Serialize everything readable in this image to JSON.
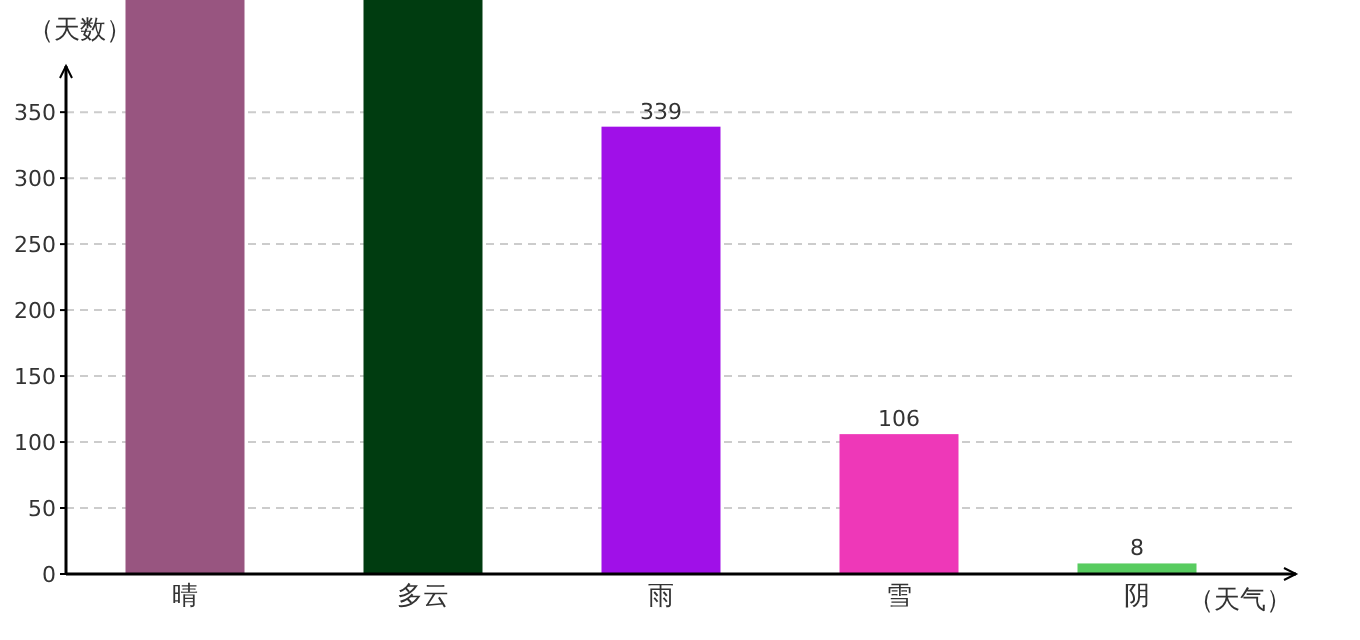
{
  "chart_data": {
    "type": "bar",
    "ylabel": "（天数）",
    "xlabel": "（天气）",
    "categories": [
      "晴",
      "多云",
      "雨",
      "雪",
      "阴"
    ],
    "values": [
      435,
      435,
      339,
      106,
      8
    ],
    "value_labels": [
      null,
      null,
      "339",
      "106",
      "8"
    ],
    "colors": [
      "#985580",
      "#003c10",
      "#a010e8",
      "#ee38b8",
      "#58cc60"
    ],
    "ylim": [
      0,
      435
    ],
    "yticks": [
      0,
      50,
      100,
      150,
      200,
      250,
      300,
      350
    ],
    "grid": "y"
  }
}
